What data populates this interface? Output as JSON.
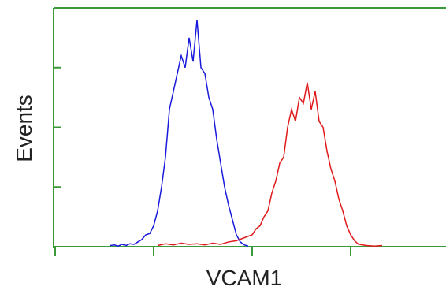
{
  "chart_data": {
    "type": "line",
    "y_label": "Events",
    "x_label": "VCAM1",
    "xlim": [
      0,
      4
    ],
    "ylim": [
      0,
      4
    ],
    "xticks": [
      0,
      1,
      2,
      3,
      4
    ],
    "yticks": [
      0,
      1,
      2,
      3,
      4
    ],
    "axis_color": "#3a9a3a",
    "series": [
      {
        "color": "#1a1adc",
        "x": [
          0.56,
          0.6,
          0.64,
          0.68,
          0.72,
          0.76,
          0.8,
          0.84,
          0.88,
          0.92,
          0.96,
          1.0,
          1.04,
          1.08,
          1.12,
          1.16,
          1.2,
          1.24,
          1.28,
          1.32,
          1.36,
          1.4,
          1.44,
          1.48,
          1.52,
          1.56,
          1.6,
          1.64,
          1.68,
          1.72,
          1.76,
          1.8,
          1.84,
          1.88,
          1.92,
          1.96
        ],
        "values": [
          0.02,
          0.03,
          0.01,
          0.04,
          0.02,
          0.05,
          0.04,
          0.08,
          0.12,
          0.2,
          0.22,
          0.35,
          0.6,
          1.0,
          1.5,
          2.3,
          2.6,
          2.9,
          3.2,
          3.0,
          3.5,
          3.1,
          3.8,
          3.0,
          2.9,
          2.5,
          2.3,
          1.8,
          1.4,
          1.0,
          0.7,
          0.45,
          0.2,
          0.08,
          0.03,
          0.01
        ]
      },
      {
        "color": "#e01a1a",
        "x": [
          1.04,
          1.12,
          1.2,
          1.28,
          1.36,
          1.44,
          1.52,
          1.6,
          1.68,
          1.76,
          1.84,
          1.92,
          2.0,
          2.04,
          2.08,
          2.12,
          2.16,
          2.2,
          2.24,
          2.28,
          2.32,
          2.36,
          2.4,
          2.44,
          2.48,
          2.52,
          2.56,
          2.6,
          2.64,
          2.68,
          2.72,
          2.76,
          2.8,
          2.84,
          2.88,
          2.92,
          2.96,
          3.0,
          3.04,
          3.08,
          3.16,
          3.24,
          3.32
        ],
        "values": [
          0.02,
          0.05,
          0.03,
          0.06,
          0.04,
          0.05,
          0.03,
          0.06,
          0.04,
          0.08,
          0.1,
          0.15,
          0.2,
          0.3,
          0.35,
          0.5,
          0.6,
          0.9,
          1.1,
          1.4,
          1.5,
          2.0,
          2.3,
          2.1,
          2.5,
          2.4,
          2.75,
          2.3,
          2.6,
          2.1,
          2.0,
          1.6,
          1.3,
          1.1,
          0.8,
          0.6,
          0.35,
          0.2,
          0.1,
          0.04,
          0.02,
          0.01,
          0.02
        ]
      }
    ]
  }
}
